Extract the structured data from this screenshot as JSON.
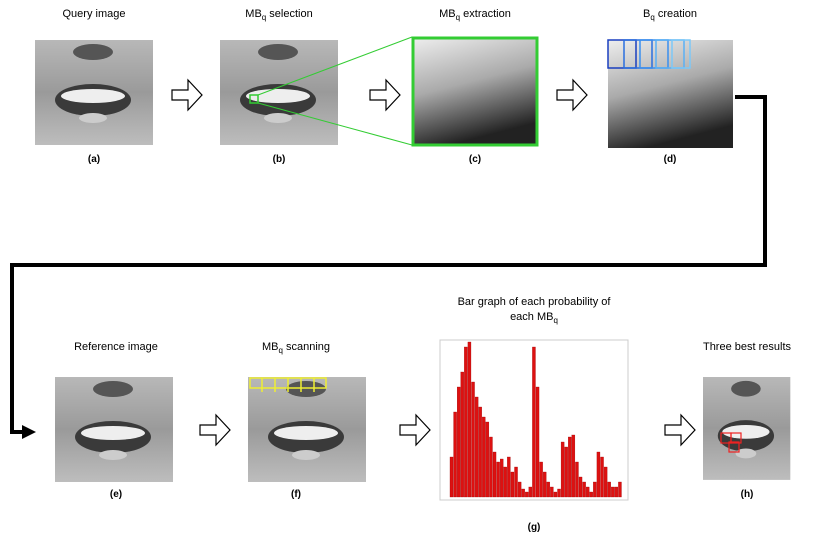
{
  "steps": [
    {
      "title": [
        "Query image"
      ],
      "label": "(a)"
    },
    {
      "title": [
        "MB",
        "q",
        " selection"
      ],
      "label": "(b)"
    },
    {
      "title": [
        "MB",
        "q",
        " extraction"
      ],
      "label": "(c)"
    },
    {
      "title": [
        "B",
        "q",
        " creation"
      ],
      "label": "(d)"
    },
    {
      "title": [
        "Reference  image"
      ],
      "label": "(e)"
    },
    {
      "title": [
        "MB",
        "q",
        " scanning"
      ],
      "label": "(f)"
    },
    {
      "title": [
        "Bar graph of each probability of",
        "each MB",
        "q"
      ],
      "label": "(g)"
    },
    {
      "title": [
        "Three best results"
      ],
      "label": "(h)"
    }
  ],
  "bar_graph": {
    "values": [
      40,
      85,
      110,
      125,
      150,
      155,
      115,
      100,
      90,
      80,
      75,
      60,
      45,
      35,
      38,
      30,
      40,
      25,
      30,
      15,
      8,
      5,
      10,
      150,
      110,
      35,
      25,
      15,
      10,
      5,
      8,
      55,
      50,
      60,
      62,
      35,
      20,
      15,
      10,
      5,
      15,
      45,
      40,
      30,
      15,
      10,
      10,
      15
    ],
    "color": "#dd1111"
  }
}
